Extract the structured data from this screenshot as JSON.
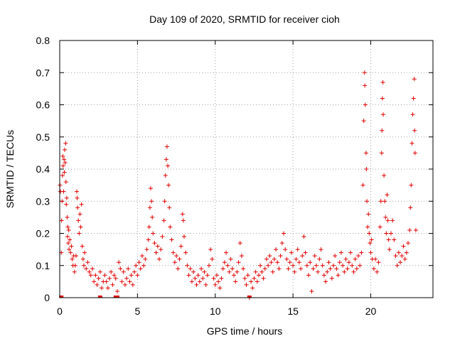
{
  "chart_data": {
    "type": "scatter",
    "title": "Day 109 of 2020, SRMTID for receiver cioh",
    "xlabel": "GPS time / hours",
    "ylabel": "SRMTID / TECUs",
    "xlim": [
      0,
      24
    ],
    "ylim": [
      0,
      0.8
    ],
    "xticks": [
      0,
      5,
      10,
      15,
      20
    ],
    "xtick_labels": [
      "0",
      "5",
      "10",
      "15",
      "20"
    ],
    "yticks": [
      0,
      0.1,
      0.2,
      0.3,
      0.4,
      0.5,
      0.6,
      0.7,
      0.8
    ],
    "ytick_labels": [
      "0",
      "0.1",
      "0.2",
      "0.3",
      "0.4",
      "0.5",
      "0.6",
      "0.7",
      "0.8"
    ],
    "grid": true,
    "marker": "plus",
    "color": "#e00000",
    "series": [
      {
        "name": "SRMTID",
        "points": [
          [
            0.02,
            0.35
          ],
          [
            0.05,
            0.33
          ],
          [
            0.1,
            0.14
          ],
          [
            0.12,
            0.24
          ],
          [
            0.15,
            0.3
          ],
          [
            0.18,
            0.38
          ],
          [
            0.2,
            0.44
          ],
          [
            0.22,
            0.41
          ],
          [
            0.25,
            0.33
          ],
          [
            0.28,
            0.43
          ],
          [
            0.3,
            0.39
          ],
          [
            0.32,
            0.46
          ],
          [
            0.35,
            0.42
          ],
          [
            0.38,
            0.48
          ],
          [
            0.4,
            0.36
          ],
          [
            0.42,
            0.29
          ],
          [
            0.45,
            0.31
          ],
          [
            0.48,
            0.25
          ],
          [
            0.5,
            0.19
          ],
          [
            0.52,
            0.22
          ],
          [
            0.55,
            0.17
          ],
          [
            0.58,
            0.21
          ],
          [
            0.6,
            0.15
          ],
          [
            0.65,
            0.18
          ],
          [
            0.7,
            0.14
          ],
          [
            0.75,
            0.16
          ],
          [
            0.8,
            0.12
          ],
          [
            0.85,
            0.1
          ],
          [
            0.9,
            0.13
          ],
          [
            0.95,
            0.08
          ],
          [
            1.0,
            0.1
          ],
          [
            1.05,
            0.13
          ],
          [
            1.1,
            0.33
          ],
          [
            1.12,
            0.31
          ],
          [
            1.15,
            0.28
          ],
          [
            1.2,
            0.24
          ],
          [
            1.25,
            0.2
          ],
          [
            1.3,
            0.26
          ],
          [
            1.35,
            0.22
          ],
          [
            1.4,
            0.29
          ],
          [
            1.45,
            0.16
          ],
          [
            1.5,
            0.12
          ],
          [
            1.55,
            0.1
          ],
          [
            1.6,
            0.14
          ],
          [
            1.7,
            0.09
          ],
          [
            1.8,
            0.11
          ],
          [
            1.9,
            0.08
          ],
          [
            2.0,
            0.07
          ],
          [
            2.1,
            0.09
          ],
          [
            2.2,
            0.05
          ],
          [
            2.3,
            0.07
          ],
          [
            2.4,
            0.04
          ],
          [
            2.5,
            0.06
          ],
          [
            2.6,
            0.08
          ],
          [
            2.7,
            0.03
          ],
          [
            2.8,
            0.05
          ],
          [
            2.9,
            0.07
          ],
          [
            3.0,
            0.05
          ],
          [
            3.1,
            0.03
          ],
          [
            3.2,
            0.06
          ],
          [
            3.3,
            0.08
          ],
          [
            3.4,
            0.04
          ],
          [
            3.5,
            0.07
          ],
          [
            3.6,
            0.06
          ],
          [
            3.7,
            0.02
          ],
          [
            3.8,
            0.11
          ],
          [
            3.9,
            0.09
          ],
          [
            4.0,
            0.05
          ],
          [
            4.1,
            0.08
          ],
          [
            4.2,
            0.04
          ],
          [
            4.3,
            0.06
          ],
          [
            4.4,
            0.09
          ],
          [
            4.5,
            0.05
          ],
          [
            4.6,
            0.07
          ],
          [
            4.7,
            0.04
          ],
          [
            4.8,
            0.08
          ],
          [
            4.9,
            0.1
          ],
          [
            5.0,
            0.07
          ],
          [
            5.1,
            0.11
          ],
          [
            5.2,
            0.09
          ],
          [
            5.3,
            0.13
          ],
          [
            5.4,
            0.1
          ],
          [
            5.5,
            0.12
          ],
          [
            5.6,
            0.15
          ],
          [
            5.7,
            0.18
          ],
          [
            5.75,
            0.22
          ],
          [
            5.8,
            0.28
          ],
          [
            5.85,
            0.34
          ],
          [
            5.9,
            0.3
          ],
          [
            5.95,
            0.25
          ],
          [
            6.0,
            0.2
          ],
          [
            6.1,
            0.17
          ],
          [
            6.2,
            0.14
          ],
          [
            6.3,
            0.16
          ],
          [
            6.4,
            0.12
          ],
          [
            6.5,
            0.15
          ],
          [
            6.6,
            0.19
          ],
          [
            6.7,
            0.24
          ],
          [
            6.75,
            0.3
          ],
          [
            6.8,
            0.38
          ],
          [
            6.85,
            0.43
          ],
          [
            6.9,
            0.47
          ],
          [
            6.95,
            0.41
          ],
          [
            7.0,
            0.35
          ],
          [
            7.05,
            0.28
          ],
          [
            7.1,
            0.22
          ],
          [
            7.2,
            0.18
          ],
          [
            7.3,
            0.14
          ],
          [
            7.4,
            0.11
          ],
          [
            7.5,
            0.13
          ],
          [
            7.6,
            0.09
          ],
          [
            7.7,
            0.12
          ],
          [
            7.8,
            0.16
          ],
          [
            7.9,
            0.26
          ],
          [
            7.95,
            0.24
          ],
          [
            8.0,
            0.19
          ],
          [
            8.1,
            0.14
          ],
          [
            8.2,
            0.1
          ],
          [
            8.3,
            0.07
          ],
          [
            8.4,
            0.09
          ],
          [
            8.5,
            0.05
          ],
          [
            8.6,
            0.08
          ],
          [
            8.7,
            0.06
          ],
          [
            8.8,
            0.04
          ],
          [
            8.9,
            0.07
          ],
          [
            9.0,
            0.05
          ],
          [
            9.1,
            0.09
          ],
          [
            9.2,
            0.06
          ],
          [
            9.3,
            0.08
          ],
          [
            9.4,
            0.04
          ],
          [
            9.5,
            0.07
          ],
          [
            9.6,
            0.1
          ],
          [
            9.7,
            0.15
          ],
          [
            9.8,
            0.12
          ],
          [
            9.9,
            0.06
          ],
          [
            10.0,
            0.04
          ],
          [
            10.1,
            0.07
          ],
          [
            10.2,
            0.05
          ],
          [
            10.3,
            0.03
          ],
          [
            10.4,
            0.06
          ],
          [
            10.5,
            0.09
          ],
          [
            10.6,
            0.11
          ],
          [
            10.7,
            0.14
          ],
          [
            10.8,
            0.1
          ],
          [
            10.9,
            0.08
          ],
          [
            11.0,
            0.12
          ],
          [
            11.1,
            0.09
          ],
          [
            11.2,
            0.07
          ],
          [
            11.3,
            0.05
          ],
          [
            11.4,
            0.08
          ],
          [
            11.5,
            0.11
          ],
          [
            11.6,
            0.17
          ],
          [
            11.7,
            0.13
          ],
          [
            11.8,
            0.09
          ],
          [
            11.9,
            0.06
          ],
          [
            12.0,
            0.04
          ],
          [
            12.1,
            0.07
          ],
          [
            12.2,
            0.0
          ],
          [
            12.3,
            0.05
          ],
          [
            12.4,
            0.03
          ],
          [
            12.5,
            0.06
          ],
          [
            12.6,
            0.08
          ],
          [
            12.7,
            0.05
          ],
          [
            12.8,
            0.07
          ],
          [
            12.9,
            0.1
          ],
          [
            13.0,
            0.08
          ],
          [
            13.1,
            0.06
          ],
          [
            13.2,
            0.09
          ],
          [
            13.3,
            0.12
          ],
          [
            13.4,
            0.1
          ],
          [
            13.5,
            0.13
          ],
          [
            13.6,
            0.11
          ],
          [
            13.7,
            0.08
          ],
          [
            13.8,
            0.12
          ],
          [
            13.9,
            0.15
          ],
          [
            14.0,
            0.11
          ],
          [
            14.1,
            0.09
          ],
          [
            14.2,
            0.13
          ],
          [
            14.3,
            0.17
          ],
          [
            14.4,
            0.2
          ],
          [
            14.5,
            0.15
          ],
          [
            14.6,
            0.12
          ],
          [
            14.7,
            0.09
          ],
          [
            14.8,
            0.11
          ],
          [
            14.9,
            0.14
          ],
          [
            15.0,
            0.1
          ],
          [
            15.1,
            0.08
          ],
          [
            15.2,
            0.12
          ],
          [
            15.3,
            0.15
          ],
          [
            15.4,
            0.11
          ],
          [
            15.5,
            0.09
          ],
          [
            15.6,
            0.13
          ],
          [
            15.7,
            0.19
          ],
          [
            15.8,
            0.14
          ],
          [
            15.9,
            0.1
          ],
          [
            16.0,
            0.07
          ],
          [
            16.1,
            0.11
          ],
          [
            16.2,
            0.02
          ],
          [
            16.3,
            0.09
          ],
          [
            16.4,
            0.13
          ],
          [
            16.5,
            0.1
          ],
          [
            16.6,
            0.08
          ],
          [
            16.7,
            0.12
          ],
          [
            16.8,
            0.15
          ],
          [
            16.9,
            0.1
          ],
          [
            17.0,
            0.07
          ],
          [
            17.1,
            0.05
          ],
          [
            17.2,
            0.08
          ],
          [
            17.3,
            0.11
          ],
          [
            17.4,
            0.09
          ],
          [
            17.5,
            0.06
          ],
          [
            17.6,
            0.1
          ],
          [
            17.7,
            0.13
          ],
          [
            17.8,
            0.09
          ],
          [
            17.9,
            0.07
          ],
          [
            18.0,
            0.11
          ],
          [
            18.1,
            0.14
          ],
          [
            18.2,
            0.1
          ],
          [
            18.3,
            0.08
          ],
          [
            18.4,
            0.12
          ],
          [
            18.5,
            0.09
          ],
          [
            18.6,
            0.11
          ],
          [
            18.7,
            0.14
          ],
          [
            18.8,
            0.1
          ],
          [
            18.9,
            0.08
          ],
          [
            19.0,
            0.12
          ],
          [
            19.1,
            0.09
          ],
          [
            19.2,
            0.13
          ],
          [
            19.3,
            0.1
          ],
          [
            19.4,
            0.14
          ],
          [
            19.5,
            0.35
          ],
          [
            19.55,
            0.55
          ],
          [
            19.6,
            0.7
          ],
          [
            19.62,
            0.66
          ],
          [
            19.65,
            0.6
          ],
          [
            19.7,
            0.45
          ],
          [
            19.72,
            0.4
          ],
          [
            19.75,
            0.3
          ],
          [
            19.8,
            0.22
          ],
          [
            19.85,
            0.26
          ],
          [
            19.9,
            0.2
          ],
          [
            19.95,
            0.17
          ],
          [
            20.0,
            0.14
          ],
          [
            20.05,
            0.18
          ],
          [
            20.1,
            0.12
          ],
          [
            20.2,
            0.09
          ],
          [
            20.3,
            0.12
          ],
          [
            20.4,
            0.08
          ],
          [
            20.5,
            0.11
          ],
          [
            20.6,
            0.22
          ],
          [
            20.65,
            0.3
          ],
          [
            20.7,
            0.45
          ],
          [
            20.72,
            0.52
          ],
          [
            20.75,
            0.62
          ],
          [
            20.78,
            0.67
          ],
          [
            20.8,
            0.57
          ],
          [
            20.85,
            0.38
          ],
          [
            20.9,
            0.3
          ],
          [
            20.95,
            0.25
          ],
          [
            21.0,
            0.2
          ],
          [
            21.05,
            0.32
          ],
          [
            21.1,
            0.24
          ],
          [
            21.15,
            0.18
          ],
          [
            21.2,
            0.15
          ],
          [
            21.3,
            0.2
          ],
          [
            21.4,
            0.24
          ],
          [
            21.5,
            0.18
          ],
          [
            21.6,
            0.13
          ],
          [
            21.7,
            0.1
          ],
          [
            21.8,
            0.14
          ],
          [
            21.9,
            0.11
          ],
          [
            22.0,
            0.13
          ],
          [
            22.1,
            0.16
          ],
          [
            22.2,
            0.12
          ],
          [
            22.3,
            0.14
          ],
          [
            22.4,
            0.17
          ],
          [
            22.5,
            0.21
          ],
          [
            22.55,
            0.28
          ],
          [
            22.6,
            0.35
          ],
          [
            22.65,
            0.48
          ],
          [
            22.7,
            0.57
          ],
          [
            22.75,
            0.62
          ],
          [
            22.8,
            0.68
          ],
          [
            22.82,
            0.52
          ],
          [
            22.85,
            0.45
          ],
          [
            22.9,
            0.21
          ]
        ]
      }
    ],
    "zero_points": [
      [
        0.1,
        0.0
      ],
      [
        2.6,
        0.0
      ],
      [
        3.6,
        0.0
      ],
      [
        3.7,
        0.0
      ],
      [
        12.2,
        0.0
      ]
    ]
  }
}
